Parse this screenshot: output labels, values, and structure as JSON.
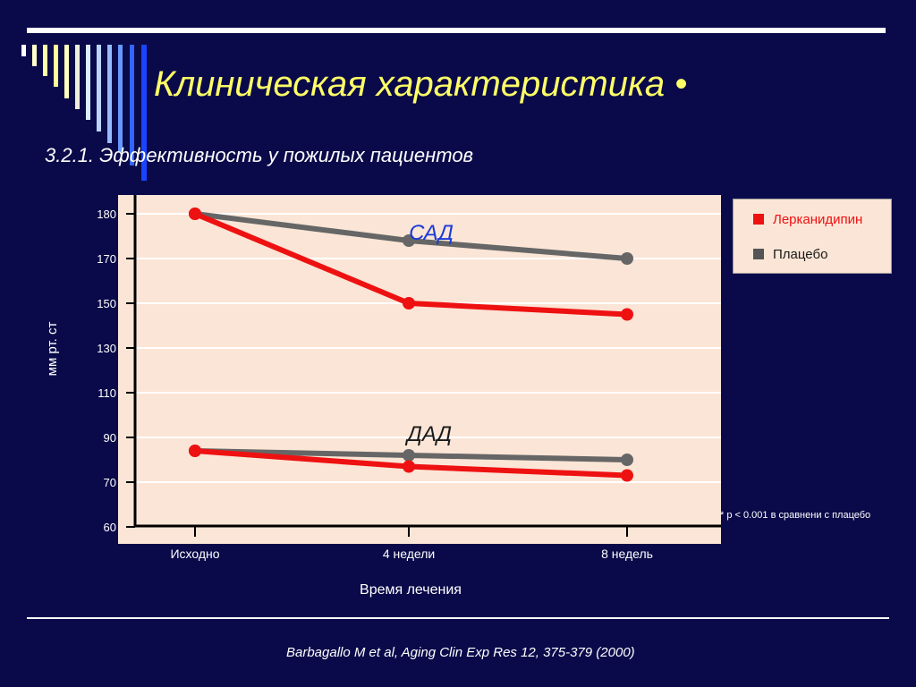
{
  "slide": {
    "title": "Клиническая характеристика •",
    "subtitle": "3.2.1. Эффективность у пожилых пациентов",
    "footnote": "*  p < 0.001 в сравнени с плацебо",
    "citation": "Barbagallo M et al, Aging Clin Exp Res 12, 375-379 (2000)"
  },
  "chart_data": {
    "type": "line",
    "title": "",
    "xlabel": "Время лечения",
    "ylabel": "мм рт. ст",
    "categories": [
      "Исходно",
      "4 недели",
      "8 недель"
    ],
    "y_ticks": [
      60,
      70,
      90,
      110,
      130,
      150,
      170,
      180
    ],
    "grid": true,
    "legend_position": "right",
    "groups": [
      {
        "label": "САД",
        "label_color": "#1a3ad8"
      },
      {
        "label": "ДАД",
        "label_color": "#1a1a1a"
      }
    ],
    "series": [
      {
        "name": "Лерканидипин",
        "group": "САД",
        "color": "#ee1111",
        "values": [
          180,
          150,
          145
        ]
      },
      {
        "name": "Плацебо",
        "group": "САД",
        "color": "#666666",
        "values": [
          180,
          174,
          170
        ]
      },
      {
        "name": "Лерканидипин",
        "group": "ДАД",
        "color": "#ee1111",
        "values": [
          84,
          77,
          73
        ]
      },
      {
        "name": "Плацебо",
        "group": "ДАД",
        "color": "#666666",
        "values": [
          84,
          82,
          80
        ]
      }
    ],
    "legend": [
      {
        "name": "Лерканидипин",
        "color": "#ee1111",
        "text_color": "#ee1111"
      },
      {
        "name": "Плацебо",
        "color": "#555555",
        "text_color": "#1a1a1a"
      }
    ],
    "plot_background": "#fbe5d6"
  }
}
